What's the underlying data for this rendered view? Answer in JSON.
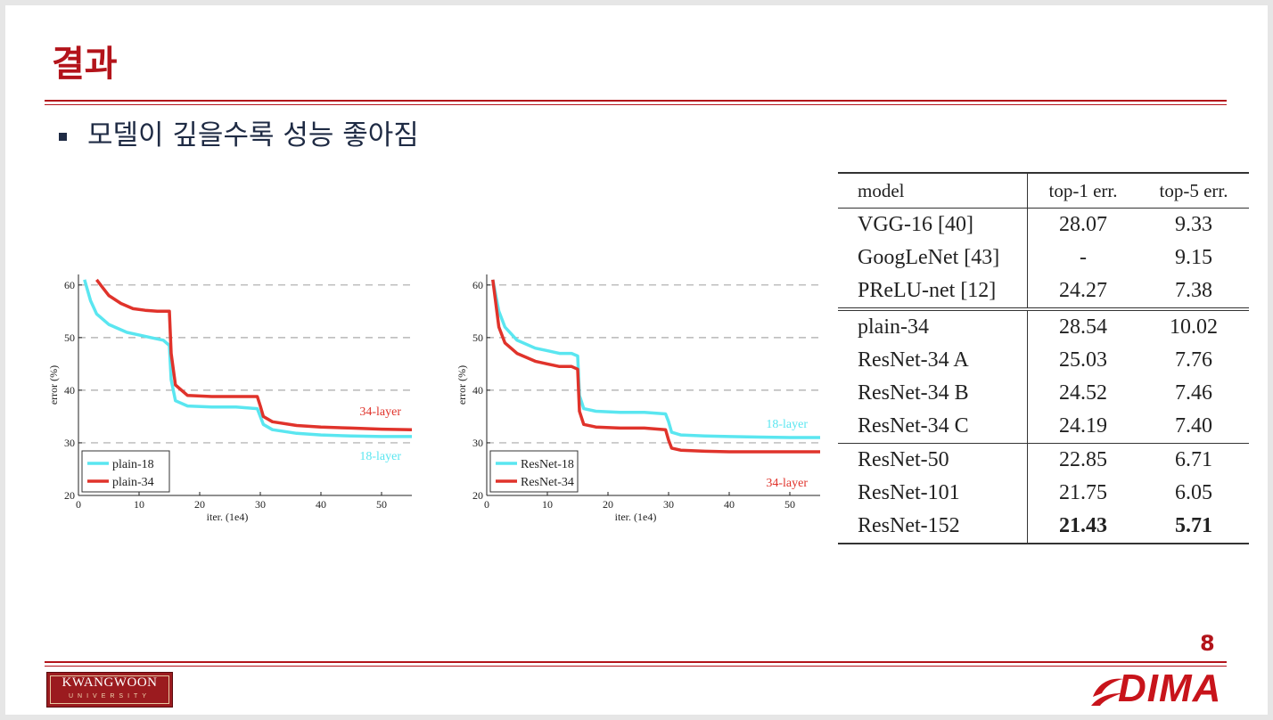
{
  "slide": {
    "title": "결과",
    "bullet": "모델이 깊을수록 성능 좋아짐",
    "page_number": "8",
    "footer_left_logo": {
      "name": "KWANGWOON",
      "sub": "UNIVERSITY"
    },
    "footer_right_logo": "DIMA",
    "accent_color": "#b3141b"
  },
  "chart_data": [
    {
      "type": "line",
      "ylabel": "error (%)",
      "xlabel": "iter. (1e4)",
      "xlim": [
        0,
        55
      ],
      "ylim": [
        20,
        62
      ],
      "xticks": [
        0,
        10,
        20,
        30,
        40,
        50
      ],
      "yticks": [
        20,
        30,
        40,
        50,
        60
      ],
      "grid": "dashed horizontal at 30, 40, 50, 60",
      "legend": "bottom-left",
      "annotations": [
        {
          "text": "34-layer",
          "color": "#e0332b"
        },
        {
          "text": "18-layer",
          "color": "#5ae6f0"
        }
      ],
      "series": [
        {
          "name": "plain-18",
          "color": "#5ae6f0",
          "x": [
            1,
            2,
            3,
            5,
            8,
            10,
            12,
            14,
            15,
            15.3,
            16,
            18,
            22,
            26,
            29.5,
            30,
            30.5,
            32,
            36,
            40,
            45,
            50,
            55
          ],
          "y": [
            61,
            57,
            54.5,
            52.5,
            51,
            50.5,
            50,
            49.5,
            48.5,
            42,
            38,
            37,
            36.8,
            36.8,
            36.5,
            35,
            33.5,
            32.5,
            31.8,
            31.5,
            31.3,
            31.2,
            31.2
          ]
        },
        {
          "name": "plain-34",
          "color": "#e0332b",
          "x": [
            3,
            4,
            5,
            7,
            9,
            11,
            13,
            15,
            15.3,
            16,
            18,
            22,
            26,
            29.5,
            30,
            30.5,
            32,
            36,
            40,
            45,
            50,
            55
          ],
          "y": [
            61,
            59.5,
            58,
            56.5,
            55.5,
            55.2,
            55,
            55,
            47,
            41,
            39,
            38.8,
            38.8,
            38.8,
            37,
            35,
            34,
            33.3,
            33,
            32.8,
            32.6,
            32.5
          ]
        }
      ]
    },
    {
      "type": "line",
      "ylabel": "error (%)",
      "xlabel": "iter. (1e4)",
      "xlim": [
        0,
        55
      ],
      "ylim": [
        20,
        62
      ],
      "xticks": [
        0,
        10,
        20,
        30,
        40,
        50
      ],
      "yticks": [
        20,
        30,
        40,
        50,
        60
      ],
      "grid": "dashed horizontal at 30, 40, 50, 60",
      "legend": "bottom-left",
      "annotations": [
        {
          "text": "18-layer",
          "color": "#5ae6f0"
        },
        {
          "text": "34-layer",
          "color": "#e0332b"
        }
      ],
      "series": [
        {
          "name": "ResNet-18",
          "color": "#5ae6f0",
          "x": [
            1,
            2,
            3,
            5,
            8,
            10,
            12,
            14,
            15,
            15.3,
            16,
            18,
            22,
            26,
            29.5,
            30,
            30.5,
            32,
            36,
            40,
            45,
            50,
            55
          ],
          "y": [
            61,
            55,
            52,
            49.5,
            48,
            47.5,
            47,
            47,
            46.5,
            39,
            36.5,
            36,
            35.8,
            35.8,
            35.5,
            34,
            32,
            31.5,
            31.3,
            31.2,
            31.1,
            31,
            31
          ]
        },
        {
          "name": "ResNet-34",
          "color": "#e0332b",
          "x": [
            1,
            2,
            3,
            5,
            8,
            10,
            12,
            14,
            15,
            15.3,
            16,
            18,
            22,
            26,
            29.5,
            30,
            30.5,
            32,
            36,
            40,
            45,
            50,
            55
          ],
          "y": [
            61,
            52,
            49,
            47,
            45.5,
            45,
            44.5,
            44.5,
            44,
            36,
            33.5,
            33,
            32.8,
            32.8,
            32.5,
            30.5,
            29,
            28.6,
            28.4,
            28.3,
            28.3,
            28.3,
            28.3
          ]
        }
      ]
    },
    {
      "type": "table",
      "columns": [
        "model",
        "top-1 err.",
        "top-5 err."
      ],
      "groups": [
        [
          [
            "VGG-16 [40]",
            "28.07",
            "9.33"
          ],
          [
            "GoogLeNet [43]",
            "-",
            "9.15"
          ],
          [
            "PReLU-net [12]",
            "24.27",
            "7.38"
          ]
        ],
        [
          [
            "plain-34",
            "28.54",
            "10.02"
          ],
          [
            "ResNet-34 A",
            "25.03",
            "7.76"
          ],
          [
            "ResNet-34 B",
            "24.52",
            "7.46"
          ],
          [
            "ResNet-34 C",
            "24.19",
            "7.40"
          ]
        ],
        [
          [
            "ResNet-50",
            "22.85",
            "6.71"
          ],
          [
            "ResNet-101",
            "21.75",
            "6.05"
          ],
          [
            "ResNet-152",
            "21.43",
            "5.71"
          ]
        ]
      ],
      "bold_cells": [
        "ResNet-152 top-1",
        "ResNet-152 top-5"
      ]
    }
  ]
}
